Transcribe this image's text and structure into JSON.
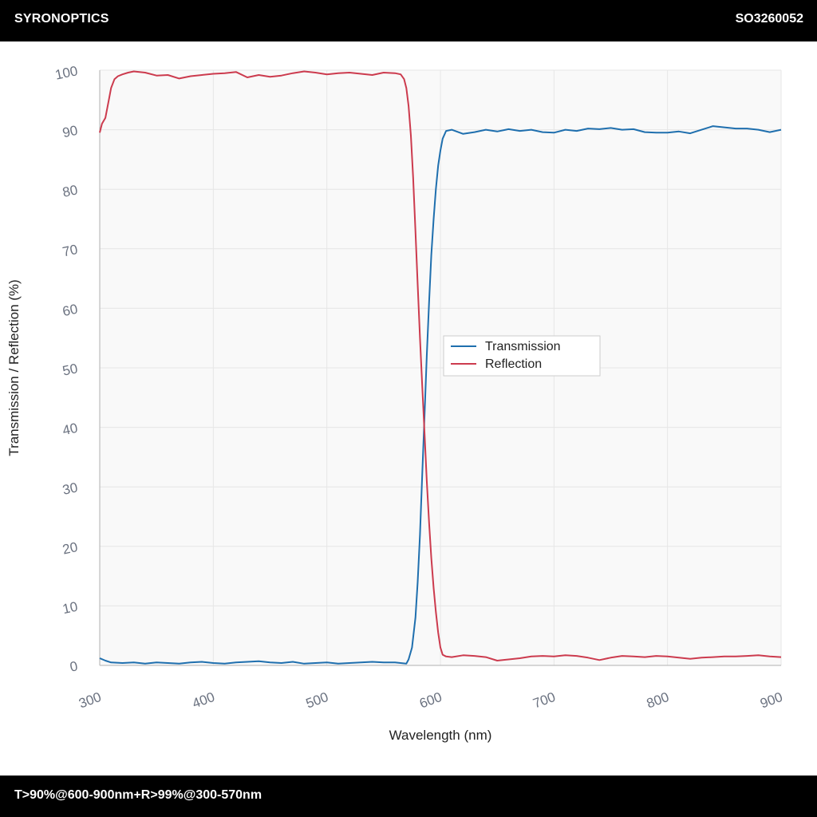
{
  "header": {
    "brand": "SYRONOPTICS",
    "code": "SO3260052"
  },
  "footer": {
    "spec": "T>90%@600-900nm+R>99%@300-570nm"
  },
  "colors": {
    "transmission": "#1f6fae",
    "reflection": "#cc3b4e",
    "plot_bg": "#f9f9f9",
    "grid": "#e6e6e6"
  },
  "chart_data": {
    "type": "line",
    "xlabel": "Wavelength (nm)",
    "ylabel": "Transmission / Reflection (%)",
    "xlim": [
      300,
      900
    ],
    "ylim": [
      0,
      100
    ],
    "xticks": [
      300,
      400,
      500,
      600,
      700,
      800,
      900
    ],
    "yticks": [
      0,
      10,
      20,
      30,
      40,
      50,
      60,
      70,
      80,
      90,
      100
    ],
    "grid": true,
    "legend_position": "center-right",
    "series": [
      {
        "name": "Transmission",
        "x": [
          300,
          305,
          310,
          320,
          330,
          340,
          350,
          360,
          370,
          380,
          390,
          400,
          410,
          420,
          430,
          440,
          450,
          460,
          470,
          480,
          490,
          500,
          510,
          520,
          530,
          540,
          550,
          560,
          570,
          572,
          575,
          578,
          580,
          582,
          584,
          586,
          588,
          590,
          592,
          594,
          596,
          598,
          600,
          602,
          605,
          610,
          620,
          630,
          640,
          650,
          660,
          670,
          680,
          690,
          700,
          710,
          720,
          730,
          740,
          750,
          760,
          770,
          780,
          790,
          800,
          810,
          820,
          830,
          840,
          850,
          860,
          870,
          880,
          890,
          900
        ],
        "y": [
          1.2,
          0.8,
          0.5,
          0.4,
          0.5,
          0.3,
          0.5,
          0.4,
          0.3,
          0.5,
          0.6,
          0.4,
          0.3,
          0.5,
          0.6,
          0.7,
          0.5,
          0.4,
          0.6,
          0.3,
          0.4,
          0.5,
          0.3,
          0.4,
          0.5,
          0.6,
          0.5,
          0.5,
          0.3,
          1.0,
          3.0,
          8.0,
          14.0,
          22.0,
          32.0,
          42.0,
          52.0,
          61.0,
          69.0,
          75.0,
          80.0,
          84.0,
          86.5,
          88.5,
          89.8,
          90.0,
          89.3,
          89.6,
          90.0,
          89.7,
          90.1,
          89.8,
          90.0,
          89.6,
          89.5,
          90.0,
          89.8,
          90.2,
          90.1,
          90.3,
          90.0,
          90.1,
          89.6,
          89.5,
          89.5,
          89.7,
          89.4,
          90.0,
          90.6,
          90.4,
          90.2,
          90.2,
          90.0,
          89.6,
          90.0
        ]
      },
      {
        "name": "Reflection",
        "x": [
          300,
          302,
          305,
          308,
          310,
          313,
          316,
          320,
          325,
          330,
          340,
          350,
          360,
          370,
          380,
          390,
          400,
          410,
          420,
          430,
          440,
          450,
          460,
          470,
          480,
          490,
          500,
          510,
          520,
          530,
          540,
          550,
          560,
          565,
          568,
          570,
          572,
          574,
          576,
          578,
          580,
          582,
          584,
          586,
          588,
          590,
          592,
          594,
          596,
          598,
          600,
          602,
          605,
          610,
          620,
          630,
          640,
          650,
          660,
          670,
          680,
          690,
          700,
          710,
          720,
          730,
          740,
          750,
          760,
          770,
          780,
          790,
          800,
          810,
          820,
          830,
          840,
          850,
          860,
          870,
          880,
          890,
          900
        ],
        "y": [
          89.5,
          91.0,
          92.0,
          95.0,
          97.0,
          98.5,
          99.0,
          99.3,
          99.6,
          99.8,
          99.6,
          99.1,
          99.2,
          98.6,
          99.0,
          99.2,
          99.4,
          99.5,
          99.7,
          98.8,
          99.2,
          98.9,
          99.1,
          99.5,
          99.8,
          99.6,
          99.3,
          99.5,
          99.6,
          99.4,
          99.2,
          99.6,
          99.5,
          99.3,
          98.5,
          97.0,
          94.0,
          89.0,
          82.0,
          73.0,
          64.0,
          55.0,
          47.0,
          39.0,
          31.0,
          24.0,
          18.0,
          13.0,
          9.0,
          5.5,
          3.0,
          1.8,
          1.5,
          1.4,
          1.7,
          1.6,
          1.4,
          0.8,
          1.0,
          1.2,
          1.5,
          1.6,
          1.5,
          1.7,
          1.6,
          1.3,
          0.9,
          1.3,
          1.6,
          1.5,
          1.4,
          1.6,
          1.5,
          1.3,
          1.1,
          1.3,
          1.4,
          1.5,
          1.5,
          1.6,
          1.7,
          1.5,
          1.4
        ]
      }
    ]
  }
}
